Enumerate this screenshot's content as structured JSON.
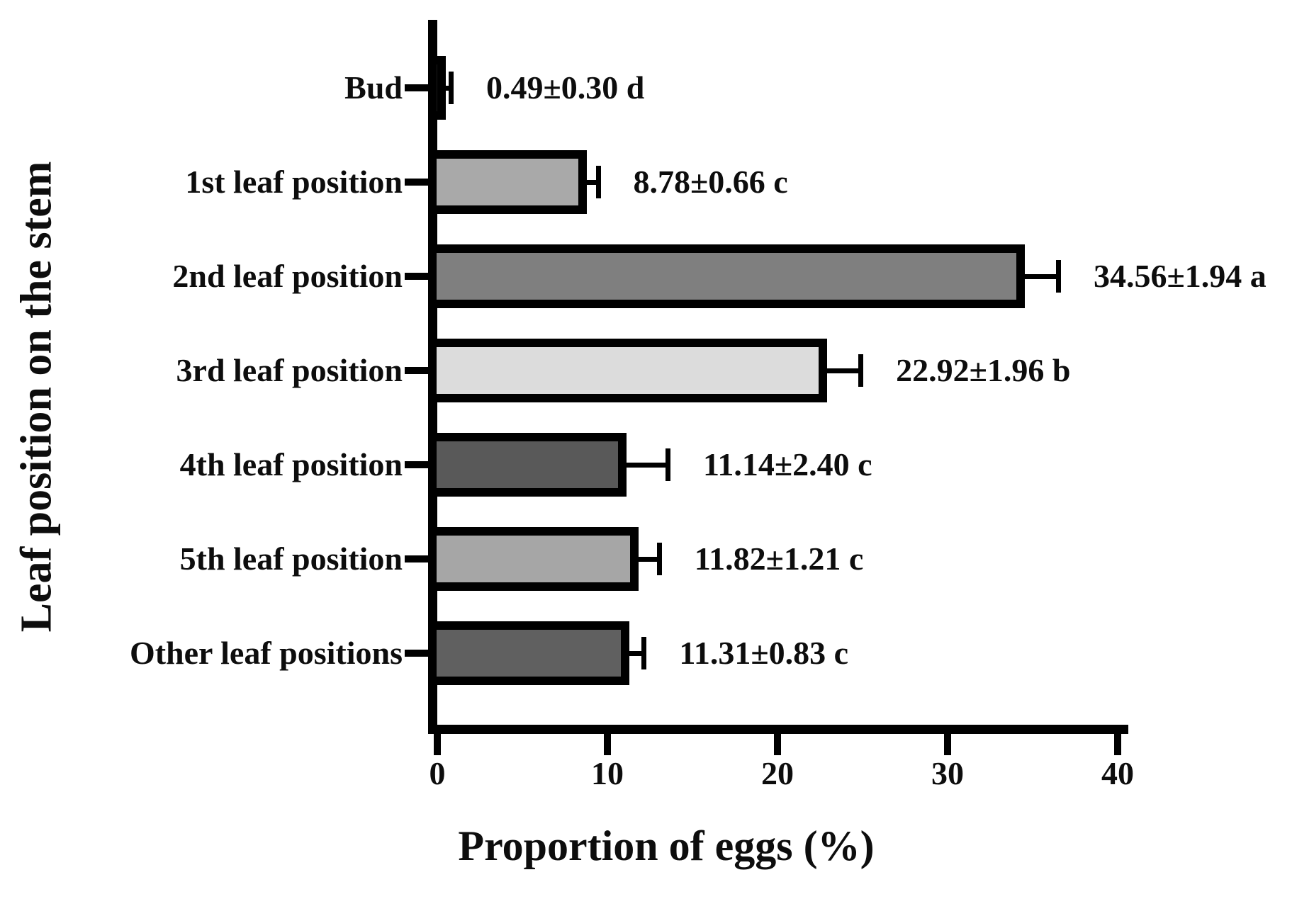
{
  "chart_data": {
    "type": "bar",
    "orientation": "horizontal",
    "title": "",
    "xlabel": "Proportion of eggs (%)",
    "ylabel": "Leaf position on the stem",
    "xlim": [
      0,
      40
    ],
    "xticks": [
      "0",
      "10",
      "20",
      "30",
      "40"
    ],
    "grid": false,
    "legend": false,
    "categories": [
      "Bud",
      "1st leaf position",
      "2nd leaf position",
      "3rd leaf position",
      "4th leaf position",
      "5th leaf position",
      "Other leaf positions"
    ],
    "values": [
      0.49,
      8.78,
      34.56,
      22.92,
      11.14,
      11.82,
      11.31
    ],
    "errors": [
      0.3,
      0.66,
      1.94,
      1.96,
      2.4,
      1.21,
      0.83
    ],
    "significance_letters": [
      "d",
      "c",
      "a",
      "b",
      "c",
      "c",
      "c"
    ],
    "value_labels": [
      "0.49±0.30 d",
      "8.78±0.66 c",
      "34.56±1.94 a",
      "22.92±1.96 b",
      "11.14±2.40 c",
      "11.82±1.21 c",
      "11.31±0.83 c"
    ],
    "bar_fill_colors": [
      "#1a1a1a",
      "#a9a9a9",
      "#7f7f7f",
      "#dcdcdc",
      "#595959",
      "#a6a6a6",
      "#606060"
    ],
    "bar_border_color": "#000000",
    "axis_color": "#000000",
    "text_color": "#0d0d0d"
  }
}
